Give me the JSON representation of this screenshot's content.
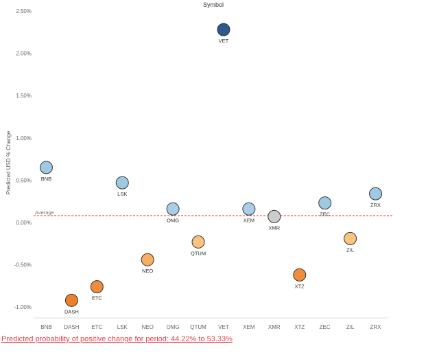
{
  "chart_data": {
    "type": "scatter",
    "title": "Symbol",
    "xlabel": "",
    "ylabel": "Predicted USD % Change",
    "ylim": [
      -1.2,
      2.5
    ],
    "yticks": [
      -1.0,
      -0.5,
      0.0,
      0.5,
      1.0,
      1.5,
      2.0,
      2.5
    ],
    "ytick_labels": [
      "-1.00%",
      "-0.50%",
      "0.00%",
      "0.50%",
      "1.00%",
      "1.50%",
      "2.00%",
      "2.50%"
    ],
    "categories": [
      "BNB",
      "DASH",
      "ETC",
      "LSK",
      "NEO",
      "OMG",
      "QTUM",
      "VET",
      "XEM",
      "XMR",
      "XTZ",
      "ZEC",
      "ZIL",
      "ZRX"
    ],
    "values": [
      0.65,
      -0.92,
      -0.76,
      0.47,
      -0.44,
      0.16,
      -0.23,
      2.28,
      0.16,
      0.07,
      -0.62,
      0.23,
      -0.19,
      0.34
    ],
    "point_labels": [
      "BNB",
      "DASH",
      "ETC",
      "LSK",
      "NEO",
      "OMG",
      "QTUM",
      "VET",
      "XEM",
      "XMR",
      "XTZ",
      "ZEC",
      "ZIL",
      "ZRX"
    ],
    "point_colors": [
      "#9fc8e3",
      "#ee8029",
      "#f08c3b",
      "#9fc8e3",
      "#f7ae60",
      "#a8cde6",
      "#f8c27f",
      "#2c5a8c",
      "#a8cde6",
      "#cccccc",
      "#f08c3b",
      "#9fc8e3",
      "#f9c47e",
      "#9fc8e3"
    ],
    "average": {
      "label": "Average",
      "value": 0.08,
      "color": "#e02020"
    },
    "legend": "none",
    "grid": false
  },
  "footnote": "Predicted probability of positive change for period:  44.22% to 53.33%"
}
